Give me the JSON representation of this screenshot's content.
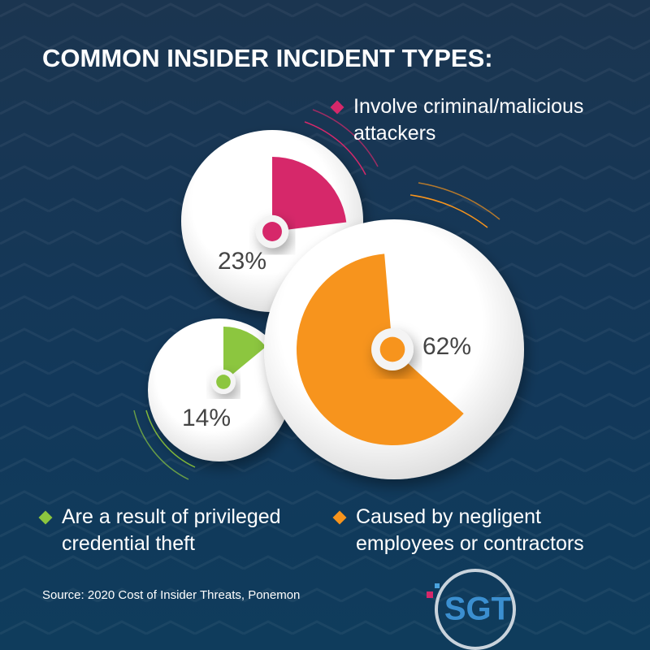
{
  "chart_data": {
    "type": "pie",
    "title": "COMMON INSIDER INCIDENT TYPES:",
    "categories": [
      "Involve criminal/malicious attackers",
      "Caused by negligent employees or contractors",
      "Are a result of privileged credential theft"
    ],
    "values": [
      23,
      62,
      14
    ],
    "value_labels": [
      "23%",
      "62%",
      "14%"
    ],
    "colors": [
      "#d6286a",
      "#f7941d",
      "#8cc63f"
    ],
    "source": "Source: 2020 Cost of Insider Threats, Ponemon",
    "logo": "SGT"
  }
}
